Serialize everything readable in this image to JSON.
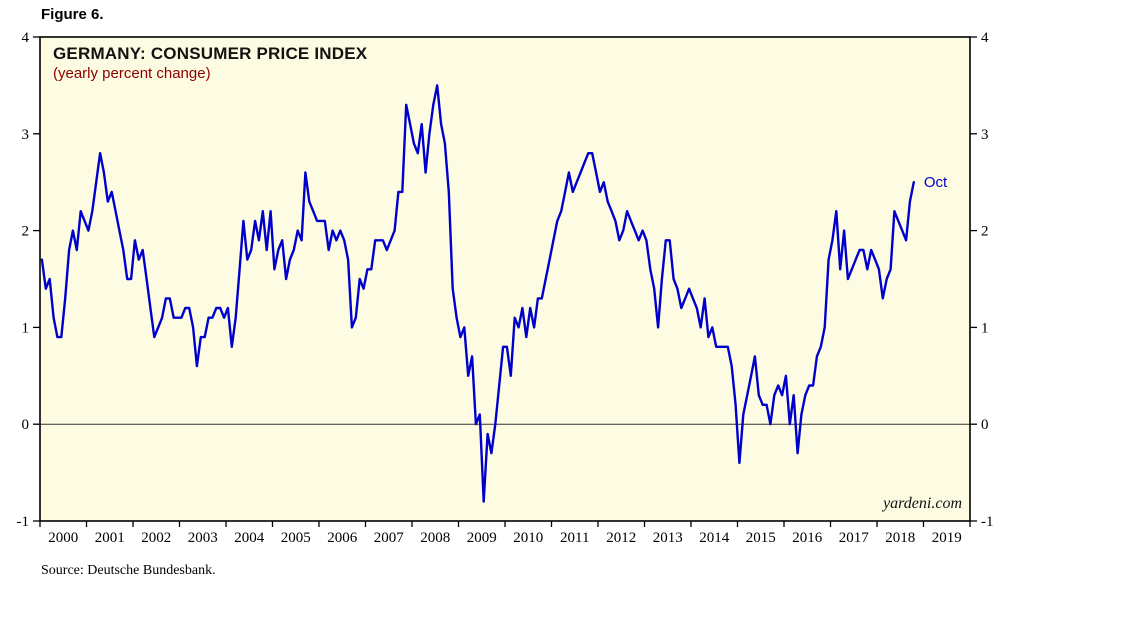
{
  "figure_label": "Figure 6.",
  "chart_header": {
    "title": "GERMANY: CONSUMER PRICE INDEX",
    "subtitle": "(yearly percent change)"
  },
  "watermark": "yardeni.com",
  "source_note": "Source: Deutsche Bundesbank.",
  "annotation": {
    "last_point_label": "Oct"
  },
  "colors": {
    "line": "#0000CC",
    "plot_bg": "#FDFCE3",
    "annotation": "#0000CC",
    "axis": "#000000",
    "zero_line": "#333333",
    "subtitle_text": "#8B0000"
  },
  "chart_data": {
    "type": "line",
    "title": "GERMANY: CONSUMER PRICE INDEX",
    "subtitle": "(yearly percent change)",
    "frequency": "monthly",
    "x_start": "2000-01",
    "x_end": "2018-10",
    "x_tick_labels": [
      "2000",
      "2001",
      "2002",
      "2003",
      "2004",
      "2005",
      "2006",
      "2007",
      "2008",
      "2009",
      "2010",
      "2011",
      "2012",
      "2013",
      "2014",
      "2015",
      "2016",
      "2017",
      "2018",
      "2019"
    ],
    "ylim": [
      -1,
      4
    ],
    "y_ticks": [
      -1,
      0,
      1,
      2,
      3,
      4
    ],
    "grid": "zero-line-only",
    "legend_position": "none",
    "last_point_label": "Oct",
    "series": [
      {
        "name": "Germany CPI (yearly percent change)",
        "values": [
          1.7,
          1.4,
          1.5,
          1.1,
          0.9,
          0.9,
          1.3,
          1.8,
          2.0,
          1.8,
          2.2,
          2.1,
          2.0,
          2.2,
          2.5,
          2.8,
          2.6,
          2.3,
          2.4,
          2.2,
          2.0,
          1.8,
          1.5,
          1.5,
          1.9,
          1.7,
          1.8,
          1.5,
          1.2,
          0.9,
          1.0,
          1.1,
          1.3,
          1.3,
          1.1,
          1.1,
          1.1,
          1.2,
          1.2,
          1.0,
          0.6,
          0.9,
          0.9,
          1.1,
          1.1,
          1.2,
          1.2,
          1.1,
          1.2,
          0.8,
          1.1,
          1.6,
          2.1,
          1.7,
          1.8,
          2.1,
          1.9,
          2.2,
          1.8,
          2.2,
          1.6,
          1.8,
          1.9,
          1.5,
          1.7,
          1.8,
          2.0,
          1.9,
          2.6,
          2.3,
          2.2,
          2.1,
          2.1,
          2.1,
          1.8,
          2.0,
          1.9,
          2.0,
          1.9,
          1.7,
          1.0,
          1.1,
          1.5,
          1.4,
          1.6,
          1.6,
          1.9,
          1.9,
          1.9,
          1.8,
          1.9,
          2.0,
          2.4,
          2.4,
          3.3,
          3.1,
          2.9,
          2.8,
          3.1,
          2.6,
          3.0,
          3.3,
          3.5,
          3.1,
          2.9,
          2.4,
          1.4,
          1.1,
          0.9,
          1.0,
          0.5,
          0.7,
          0.0,
          0.1,
          -0.8,
          -0.1,
          -0.3,
          0.0,
          0.4,
          0.8,
          0.8,
          0.5,
          1.1,
          1.0,
          1.2,
          0.9,
          1.2,
          1.0,
          1.3,
          1.3,
          1.5,
          1.7,
          1.9,
          2.1,
          2.2,
          2.4,
          2.6,
          2.4,
          2.5,
          2.6,
          2.7,
          2.8,
          2.8,
          2.6,
          2.4,
          2.5,
          2.3,
          2.2,
          2.1,
          1.9,
          2.0,
          2.2,
          2.1,
          2.0,
          1.9,
          2.0,
          1.9,
          1.6,
          1.4,
          1.0,
          1.5,
          1.9,
          1.9,
          1.5,
          1.4,
          1.2,
          1.3,
          1.4,
          1.3,
          1.2,
          1.0,
          1.3,
          0.9,
          1.0,
          0.8,
          0.8,
          0.8,
          0.8,
          0.6,
          0.2,
          -0.4,
          0.1,
          0.3,
          0.5,
          0.7,
          0.3,
          0.2,
          0.2,
          0.0,
          0.3,
          0.4,
          0.3,
          0.5,
          0.0,
          0.3,
          -0.3,
          0.1,
          0.3,
          0.4,
          0.4,
          0.7,
          0.8,
          1.0,
          1.7,
          1.9,
          2.2,
          1.6,
          2.0,
          1.5,
          1.6,
          1.7,
          1.8,
          1.8,
          1.6,
          1.8,
          1.7,
          1.6,
          1.3,
          1.5,
          1.6,
          2.2,
          2.1,
          2.0,
          1.9,
          2.3,
          2.5
        ]
      }
    ]
  }
}
